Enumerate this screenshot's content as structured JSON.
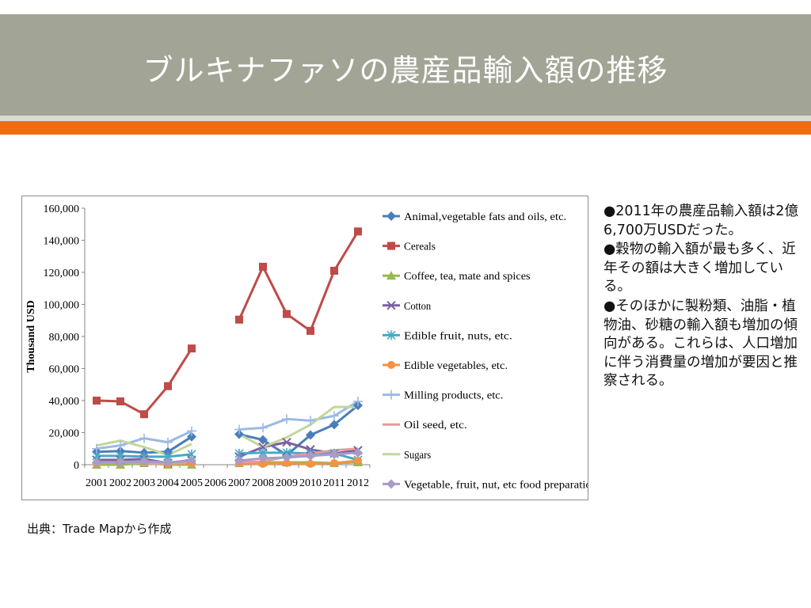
{
  "slide": {
    "title": "ブルキナファソの農産品輸入額の推移",
    "bullets": [
      "●2011年の農産品輸入額は2億6,700万USDだった。",
      "●穀物の輸入額が最も多く、近年その額は大きく増加している。",
      "●そのほかに製粉類、油脂・植物油、砂糖の輸入額も増加の傾向がある。これらは、人口増加に伴う消費量の増加が要因と推察される。"
    ],
    "source": "出典：Trade Mapから作成"
  },
  "chart_data": {
    "type": "line",
    "title": "",
    "xlabel": "",
    "ylabel": "Thousand USD",
    "ylim": [
      0,
      160000
    ],
    "ytick_labels": [
      "0",
      "20,000",
      "40,000",
      "60,000",
      "80,000",
      "100,000",
      "120,000",
      "140,000",
      "160,000"
    ],
    "grid": false,
    "legend_position": "right",
    "categories": [
      "2001",
      "2002",
      "2003",
      "2004",
      "2005",
      "2006",
      "2007",
      "2008",
      "2009",
      "2010",
      "2011",
      "2012"
    ],
    "series": [
      {
        "name": "Animal,vegetable fats and oils, etc.",
        "color": "#4a7ebb",
        "marker": "diamond",
        "values": [
          8000,
          8500,
          7500,
          8000,
          17500,
          null,
          19000,
          15500,
          6000,
          18500,
          25000,
          37000
        ]
      },
      {
        "name": "Cereals",
        "color": "#be4b48",
        "marker": "square",
        "values": [
          40000,
          39500,
          31500,
          49000,
          72500,
          null,
          90500,
          123500,
          94000,
          83500,
          121000,
          145500
        ]
      },
      {
        "name": "Coffee, tea, mate and spices",
        "color": "#98b954",
        "marker": "triangle",
        "values": [
          0,
          0,
          1000,
          0,
          0,
          null,
          1000,
          1500,
          1500,
          1500,
          1000,
          1500
        ]
      },
      {
        "name": "Cotton",
        "color": "#7d60a0",
        "marker": "x",
        "values": [
          3000,
          3000,
          3500,
          1000,
          3000,
          null,
          5000,
          11000,
          14000,
          9500,
          7000,
          9000
        ]
      },
      {
        "name": "Edible fruit, nuts, etc.",
        "color": "#46aac5",
        "marker": "star",
        "values": [
          5500,
          5500,
          5000,
          5000,
          6500,
          null,
          7000,
          7500,
          7500,
          7000,
          7000,
          3000
        ]
      },
      {
        "name": "Edible vegetables, etc.",
        "color": "#f69240",
        "marker": "circle",
        "values": [
          1000,
          1500,
          1500,
          500,
          1000,
          null,
          1000,
          500,
          1000,
          500,
          1000,
          2500
        ]
      },
      {
        "name": "Milling products, etc.",
        "color": "#9bbae4",
        "marker": "plus",
        "values": [
          10000,
          12000,
          16500,
          14000,
          21000,
          null,
          22000,
          23000,
          28500,
          27500,
          30500,
          39500
        ]
      },
      {
        "name": "Oil seed, etc.",
        "color": "#e89a9a",
        "marker": "none",
        "values": [
          1000,
          1500,
          1000,
          500,
          1500,
          null,
          1500,
          2000,
          5000,
          7000,
          9000,
          10000
        ]
      },
      {
        "name": "Sugars",
        "color": "#c3d69b",
        "marker": "none",
        "values": [
          12000,
          15000,
          11000,
          6000,
          13000,
          null,
          19000,
          11000,
          17000,
          25000,
          36000,
          36000
        ]
      },
      {
        "name": "Vegetable, fruit, nut, etc food preparations",
        "color": "#a99bc6",
        "marker": "diamond",
        "values": [
          1500,
          1500,
          2000,
          1500,
          2500,
          null,
          2500,
          4000,
          4500,
          5500,
          6500,
          7500
        ]
      }
    ]
  }
}
